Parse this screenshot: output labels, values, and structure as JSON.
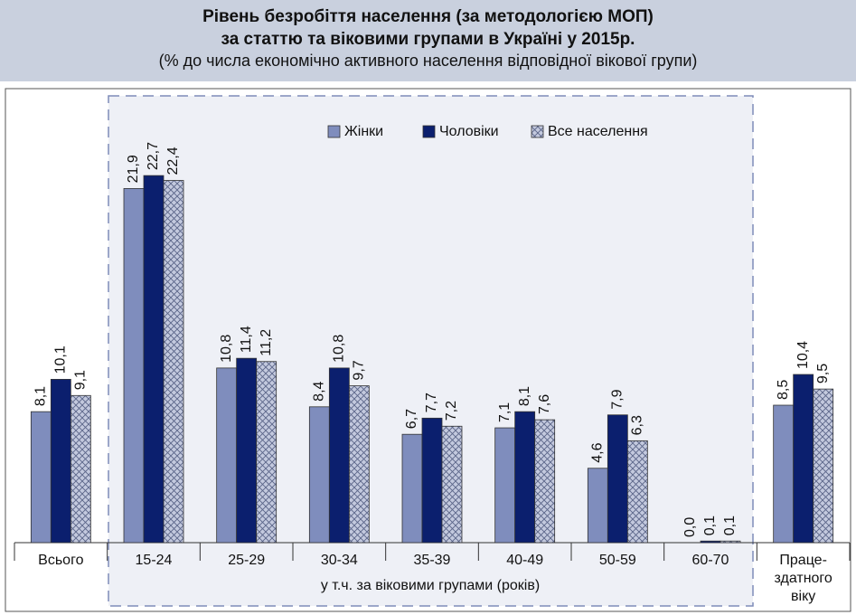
{
  "chart_data": {
    "type": "bar",
    "title": [
      "Рівень безробіття населення (за методологією МОП)",
      "за статтю та віковими групами в Україні у 2015р."
    ],
    "subtitle": "(% до числа економічно активного населення відповідної вікової групи)",
    "x_label": "у т.ч. за віковими групами (років)",
    "categories": [
      "Всього",
      "15-24",
      "25-29",
      "30-34",
      "35-39",
      "40-49",
      "50-59",
      "60-70",
      "Праце-здатного віку"
    ],
    "series": [
      {
        "name": "Жінки",
        "color": "#7f8dbd",
        "values": [
          8.1,
          21.9,
          10.8,
          8.4,
          6.7,
          7.1,
          4.6,
          0.0,
          8.5
        ],
        "value_labels": [
          "8,1",
          "21,9",
          "10,8",
          "8,4",
          "6,7",
          "7,1",
          "4,6",
          "0,0",
          "8,5"
        ]
      },
      {
        "name": "Чоловіки",
        "color": "#0b1f6e",
        "values": [
          10.1,
          22.7,
          11.4,
          10.8,
          7.7,
          8.1,
          7.9,
          0.1,
          10.4
        ],
        "value_labels": [
          "10,1",
          "22,7",
          "11,4",
          "10,8",
          "7,7",
          "8,1",
          "7,9",
          "0,1",
          "10,4"
        ]
      },
      {
        "name": "Все населення",
        "color": "#c3c9de",
        "hatch": true,
        "values": [
          9.1,
          22.4,
          11.2,
          9.7,
          7.2,
          7.6,
          6.3,
          0.1,
          9.5
        ],
        "value_labels": [
          "9,1",
          "22,4",
          "11,2",
          "9,7",
          "7,2",
          "7,6",
          "6,3",
          "0,1",
          "9,5"
        ]
      }
    ],
    "ylim": [
      0,
      25
    ],
    "legend": "upper right"
  }
}
